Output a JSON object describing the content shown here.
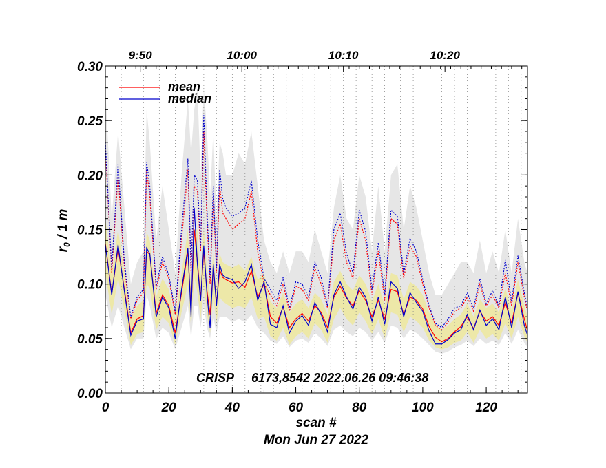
{
  "chart_data": {
    "type": "line",
    "xlabel": "scan #",
    "ylabel_main": "r",
    "ylabel_sub": "0",
    "ylabel_rest": " / 1 m",
    "date_label": "Mon Jun 27 2022",
    "annotation_instrument": "CRISP",
    "annotation_info": "6173,8542 2022.06.26 09:46:38",
    "xlim": [
      0,
      133
    ],
    "ylim": [
      0,
      0.3
    ],
    "x_ticks": [
      0,
      20,
      40,
      60,
      80,
      100,
      120
    ],
    "x_tick_labels": [
      "0",
      "20",
      "40",
      "60",
      "80",
      "100",
      "120"
    ],
    "y_ticks": [
      0,
      0.05,
      0.1,
      0.15,
      0.2,
      0.25,
      0.3
    ],
    "y_tick_labels": [
      "0.00",
      "0.05",
      "0.10",
      "0.15",
      "0.20",
      "0.25",
      "0.30"
    ],
    "time_ticks": [
      {
        "x": 11,
        "label": "9:50"
      },
      {
        "x": 43,
        "label": "10:00"
      },
      {
        "x": 75,
        "label": "10:10"
      },
      {
        "x": 107,
        "label": "10:20"
      }
    ],
    "scan_start_lines": [
      5,
      9,
      12,
      17,
      22,
      27,
      31,
      35,
      40,
      44,
      49,
      53,
      57,
      62,
      66,
      71,
      75,
      79,
      84,
      88,
      93,
      97,
      101,
      106,
      110,
      114,
      119,
      123,
      127,
      131
    ],
    "legend": [
      {
        "label": "mean",
        "color": "#ff0000"
      },
      {
        "label": "median",
        "color": "#0000cc"
      }
    ],
    "colors": {
      "mean": "#ff0000",
      "median": "#0000cc",
      "band_outer": "#e6e6e6",
      "band_inner": "#ede8a8",
      "grid": "#888888"
    },
    "series": [
      {
        "name": "mean",
        "x": [
          0,
          2,
          4,
          6,
          8,
          10,
          12,
          13,
          14,
          16,
          18,
          20,
          22,
          24,
          26,
          27,
          28,
          29,
          30,
          31,
          32,
          33,
          34,
          35,
          36,
          37,
          38,
          40,
          42,
          44,
          46,
          48,
          50,
          52,
          54,
          56,
          58,
          60,
          62,
          64,
          66,
          68,
          70,
          72,
          74,
          76,
          78,
          80,
          82,
          84,
          86,
          88,
          90,
          92,
          94,
          96,
          98,
          100,
          102,
          104,
          106,
          108,
          110,
          112,
          114,
          116,
          118,
          120,
          122,
          124,
          126,
          128,
          130,
          132,
          133
        ],
        "values": [
          0.137,
          0.091,
          0.133,
          0.095,
          0.055,
          0.068,
          0.071,
          0.13,
          0.127,
          0.073,
          0.09,
          0.08,
          0.055,
          0.092,
          0.13,
          0.076,
          0.15,
          0.12,
          0.087,
          0.13,
          0.094,
          0.072,
          0.115,
          0.082,
          0.113,
          0.106,
          0.104,
          0.101,
          0.102,
          0.097,
          0.112,
          0.088,
          0.1,
          0.07,
          0.064,
          0.079,
          0.06,
          0.068,
          0.073,
          0.066,
          0.08,
          0.074,
          0.06,
          0.088,
          0.098,
          0.087,
          0.08,
          0.094,
          0.085,
          0.07,
          0.085,
          0.068,
          0.095,
          0.093,
          0.072,
          0.088,
          0.085,
          0.077,
          0.061,
          0.051,
          0.047,
          0.05,
          0.056,
          0.061,
          0.07,
          0.059,
          0.075,
          0.066,
          0.07,
          0.062,
          0.083,
          0.064,
          0.092,
          0.068,
          0.057
        ]
      },
      {
        "name": "median",
        "x": [
          0,
          2,
          4,
          6,
          8,
          10,
          12,
          13,
          14,
          16,
          18,
          20,
          22,
          24,
          26,
          27,
          28,
          29,
          30,
          31,
          32,
          33,
          34,
          35,
          36,
          37,
          38,
          40,
          42,
          44,
          46,
          48,
          50,
          52,
          54,
          56,
          58,
          60,
          62,
          64,
          66,
          68,
          70,
          72,
          74,
          76,
          78,
          80,
          82,
          84,
          86,
          88,
          90,
          92,
          94,
          96,
          98,
          100,
          102,
          104,
          106,
          108,
          110,
          112,
          114,
          116,
          118,
          120,
          122,
          124,
          126,
          128,
          130,
          132,
          133
        ],
        "values": [
          0.136,
          0.09,
          0.136,
          0.093,
          0.053,
          0.066,
          0.068,
          0.133,
          0.128,
          0.07,
          0.088,
          0.078,
          0.05,
          0.095,
          0.133,
          0.07,
          0.17,
          0.118,
          0.084,
          0.135,
          0.091,
          0.06,
          0.118,
          0.08,
          0.118,
          0.108,
          0.106,
          0.104,
          0.096,
          0.102,
          0.118,
          0.085,
          0.102,
          0.063,
          0.06,
          0.08,
          0.055,
          0.066,
          0.071,
          0.062,
          0.083,
          0.072,
          0.056,
          0.09,
          0.102,
          0.088,
          0.077,
          0.097,
          0.088,
          0.066,
          0.088,
          0.063,
          0.102,
          0.096,
          0.07,
          0.092,
          0.083,
          0.075,
          0.057,
          0.045,
          0.045,
          0.049,
          0.055,
          0.058,
          0.072,
          0.058,
          0.076,
          0.062,
          0.068,
          0.058,
          0.088,
          0.06,
          0.093,
          0.062,
          0.053
        ]
      },
      {
        "name": "mean_upper",
        "x": [
          0,
          2,
          4,
          6,
          8,
          10,
          12,
          13,
          14,
          16,
          18,
          20,
          22,
          24,
          26,
          27,
          28,
          29,
          30,
          31,
          32,
          33,
          34,
          35,
          36,
          37,
          38,
          40,
          42,
          44,
          46,
          48,
          50,
          52,
          54,
          56,
          58,
          60,
          62,
          64,
          66,
          68,
          70,
          72,
          74,
          76,
          78,
          80,
          82,
          84,
          86,
          88,
          90,
          92,
          94,
          96,
          98,
          100,
          102,
          104,
          106,
          108,
          110,
          112,
          114,
          116,
          118,
          120,
          122,
          124,
          126,
          128,
          130,
          132,
          133
        ],
        "values": [
          0.225,
          0.11,
          0.2,
          0.115,
          0.068,
          0.085,
          0.092,
          0.205,
          0.18,
          0.095,
          0.12,
          0.105,
          0.072,
          0.14,
          0.205,
          0.11,
          0.19,
          0.185,
          0.13,
          0.24,
          0.16,
          0.1,
          0.18,
          0.11,
          0.19,
          0.165,
          0.16,
          0.15,
          0.155,
          0.16,
          0.185,
          0.13,
          0.1,
          0.09,
          0.08,
          0.1,
          0.075,
          0.098,
          0.095,
          0.085,
          0.115,
          0.1,
          0.078,
          0.14,
          0.155,
          0.12,
          0.105,
          0.16,
          0.14,
          0.09,
          0.13,
          0.085,
          0.16,
          0.155,
          0.105,
          0.135,
          0.125,
          0.1,
          0.078,
          0.062,
          0.058,
          0.065,
          0.075,
          0.078,
          0.088,
          0.075,
          0.1,
          0.08,
          0.09,
          0.078,
          0.11,
          0.08,
          0.12,
          0.088,
          0.075
        ]
      },
      {
        "name": "median_upper",
        "x": [
          0,
          2,
          4,
          6,
          8,
          10,
          12,
          13,
          14,
          16,
          18,
          20,
          22,
          24,
          26,
          27,
          28,
          29,
          30,
          31,
          32,
          33,
          34,
          35,
          36,
          37,
          38,
          40,
          42,
          44,
          46,
          48,
          50,
          52,
          54,
          56,
          58,
          60,
          62,
          64,
          66,
          68,
          70,
          72,
          74,
          76,
          78,
          80,
          82,
          84,
          86,
          88,
          90,
          92,
          94,
          96,
          98,
          100,
          102,
          104,
          106,
          108,
          110,
          112,
          114,
          116,
          118,
          120,
          122,
          124,
          126,
          128,
          130,
          132,
          133
        ],
        "values": [
          0.23,
          0.115,
          0.21,
          0.12,
          0.07,
          0.088,
          0.095,
          0.212,
          0.19,
          0.098,
          0.125,
          0.108,
          0.075,
          0.15,
          0.215,
          0.115,
          0.2,
          0.195,
          0.135,
          0.255,
          0.17,
          0.105,
          0.19,
          0.115,
          0.205,
          0.178,
          0.17,
          0.162,
          0.165,
          0.17,
          0.195,
          0.14,
          0.105,
          0.095,
          0.085,
          0.106,
          0.078,
          0.102,
          0.1,
          0.088,
          0.12,
          0.106,
          0.08,
          0.15,
          0.165,
          0.128,
          0.11,
          0.168,
          0.148,
          0.095,
          0.138,
          0.09,
          0.168,
          0.162,
          0.11,
          0.142,
          0.13,
          0.104,
          0.08,
          0.064,
          0.06,
          0.068,
          0.078,
          0.08,
          0.092,
          0.078,
          0.105,
          0.082,
          0.094,
          0.08,
          0.122,
          0.084,
          0.126,
          0.092,
          0.078
        ]
      }
    ],
    "band_outer": {
      "x": [
        0,
        2,
        4,
        6,
        8,
        10,
        12,
        13,
        14,
        16,
        18,
        20,
        22,
        24,
        26,
        27,
        28,
        29,
        30,
        31,
        32,
        33,
        34,
        35,
        36,
        37,
        38,
        40,
        42,
        44,
        46,
        48,
        50,
        52,
        54,
        56,
        58,
        60,
        62,
        64,
        66,
        68,
        70,
        72,
        74,
        76,
        78,
        80,
        82,
        84,
        86,
        88,
        90,
        92,
        94,
        96,
        98,
        100,
        102,
        104,
        106,
        108,
        110,
        112,
        114,
        116,
        118,
        120,
        122,
        124,
        126,
        128,
        130,
        132,
        133
      ],
      "upper": [
        0.28,
        0.16,
        0.24,
        0.17,
        0.1,
        0.12,
        0.13,
        0.26,
        0.23,
        0.14,
        0.19,
        0.15,
        0.11,
        0.2,
        0.27,
        0.22,
        0.26,
        0.28,
        0.2,
        0.28,
        0.24,
        0.18,
        0.24,
        0.16,
        0.23,
        0.22,
        0.2,
        0.2,
        0.22,
        0.21,
        0.24,
        0.19,
        0.14,
        0.12,
        0.11,
        0.13,
        0.11,
        0.13,
        0.13,
        0.12,
        0.15,
        0.13,
        0.11,
        0.17,
        0.2,
        0.16,
        0.15,
        0.2,
        0.18,
        0.13,
        0.19,
        0.13,
        0.2,
        0.21,
        0.15,
        0.19,
        0.17,
        0.14,
        0.11,
        0.09,
        0.09,
        0.1,
        0.11,
        0.12,
        0.12,
        0.11,
        0.14,
        0.11,
        0.13,
        0.11,
        0.15,
        0.11,
        0.16,
        0.12,
        0.11
      ],
      "lower": [
        0.09,
        0.06,
        0.08,
        0.06,
        0.04,
        0.05,
        0.05,
        0.09,
        0.08,
        0.05,
        0.06,
        0.055,
        0.04,
        0.06,
        0.08,
        0.05,
        0.08,
        0.08,
        0.06,
        0.08,
        0.06,
        0.05,
        0.07,
        0.055,
        0.07,
        0.07,
        0.07,
        0.065,
        0.068,
        0.065,
        0.072,
        0.06,
        0.055,
        0.048,
        0.045,
        0.052,
        0.042,
        0.048,
        0.05,
        0.046,
        0.055,
        0.05,
        0.043,
        0.058,
        0.062,
        0.056,
        0.052,
        0.06,
        0.056,
        0.048,
        0.056,
        0.046,
        0.062,
        0.06,
        0.05,
        0.058,
        0.055,
        0.05,
        0.044,
        0.038,
        0.036,
        0.038,
        0.042,
        0.044,
        0.048,
        0.043,
        0.05,
        0.045,
        0.048,
        0.044,
        0.055,
        0.045,
        0.058,
        0.046,
        0.042
      ]
    },
    "band_inner": {
      "x": [
        0,
        2,
        4,
        6,
        8,
        10,
        12,
        13,
        14,
        16,
        18,
        20,
        22,
        24,
        26,
        27,
        28,
        29,
        30,
        31,
        32,
        33,
        34,
        35,
        36,
        37,
        38,
        40,
        42,
        44,
        46,
        48,
        50,
        52,
        54,
        56,
        58,
        60,
        62,
        64,
        66,
        68,
        70,
        72,
        74,
        76,
        78,
        80,
        82,
        84,
        86,
        88,
        90,
        92,
        94,
        96,
        98,
        100,
        102,
        104,
        106,
        108,
        110,
        112,
        114,
        116,
        118,
        120,
        122,
        124,
        126,
        128,
        130,
        132,
        133
      ],
      "upper": [
        0.16,
        0.11,
        0.15,
        0.11,
        0.068,
        0.08,
        0.085,
        0.148,
        0.14,
        0.088,
        0.105,
        0.095,
        0.068,
        0.11,
        0.15,
        0.095,
        0.15,
        0.15,
        0.105,
        0.152,
        0.11,
        0.09,
        0.13,
        0.098,
        0.128,
        0.12,
        0.118,
        0.115,
        0.118,
        0.112,
        0.125,
        0.104,
        0.11,
        0.084,
        0.078,
        0.092,
        0.074,
        0.082,
        0.086,
        0.078,
        0.092,
        0.086,
        0.072,
        0.102,
        0.112,
        0.1,
        0.094,
        0.108,
        0.1,
        0.084,
        0.1,
        0.08,
        0.11,
        0.108,
        0.086,
        0.102,
        0.098,
        0.09,
        0.074,
        0.062,
        0.058,
        0.062,
        0.068,
        0.072,
        0.082,
        0.07,
        0.086,
        0.078,
        0.082,
        0.074,
        0.096,
        0.076,
        0.104,
        0.08,
        0.07
      ],
      "lower": [
        0.11,
        0.072,
        0.105,
        0.076,
        0.044,
        0.054,
        0.056,
        0.1,
        0.096,
        0.058,
        0.07,
        0.064,
        0.044,
        0.074,
        0.1,
        0.06,
        0.106,
        0.092,
        0.068,
        0.1,
        0.072,
        0.055,
        0.088,
        0.064,
        0.088,
        0.084,
        0.082,
        0.078,
        0.08,
        0.078,
        0.088,
        0.068,
        0.07,
        0.052,
        0.048,
        0.06,
        0.044,
        0.052,
        0.056,
        0.05,
        0.064,
        0.058,
        0.046,
        0.068,
        0.078,
        0.068,
        0.062,
        0.074,
        0.066,
        0.054,
        0.068,
        0.05,
        0.074,
        0.072,
        0.056,
        0.07,
        0.066,
        0.06,
        0.048,
        0.042,
        0.04,
        0.042,
        0.046,
        0.048,
        0.056,
        0.046,
        0.058,
        0.05,
        0.054,
        0.048,
        0.064,
        0.05,
        0.07,
        0.052,
        0.046
      ]
    }
  }
}
